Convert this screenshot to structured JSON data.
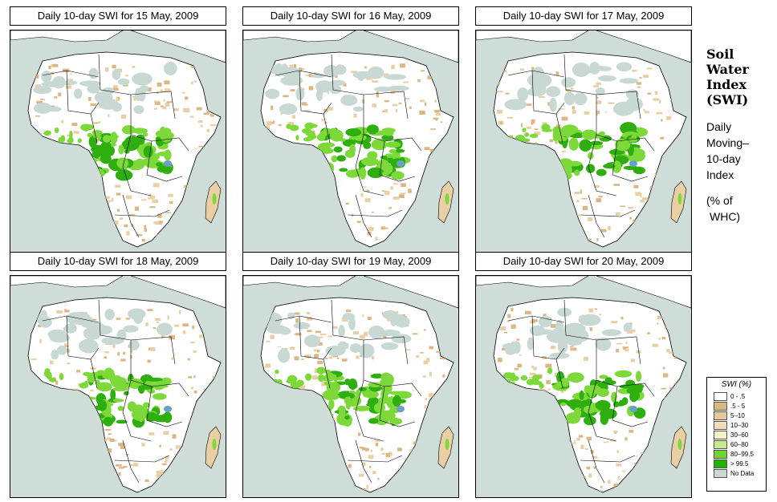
{
  "panels": [
    {
      "title": "Daily 10-day SWI for  15 May, 2009"
    },
    {
      "title": "Daily 10-day SWI for  16 May, 2009"
    },
    {
      "title": "Daily 10-day SWI for  17 May, 2009"
    },
    {
      "title": "Daily 10-day SWI for  18 May, 2009"
    },
    {
      "title": "Daily 10-day SWI for  19 May, 2009"
    },
    {
      "title": "Daily 10-day SWI for  20 May, 2009"
    }
  ],
  "side": {
    "title_lines": [
      "Soil",
      "Water",
      "Index",
      "(SWI)"
    ],
    "desc_lines": [
      "Daily",
      "Moving–",
      "10-day",
      "Index"
    ],
    "unit_lines": [
      "(% of",
      "WHC)"
    ]
  },
  "legend": {
    "title": "SWI (%)",
    "items": [
      {
        "label": "0 - .5",
        "color": "#ffffff"
      },
      {
        "label": ".5 - 5",
        "color": "#d9b983"
      },
      {
        "label": "5–10",
        "color": "#e6c99a"
      },
      {
        "label": "10–30",
        "color": "#f2ddb8"
      },
      {
        "label": "30–60",
        "color": "#f7f0c8"
      },
      {
        "label": "60–80",
        "color": "#c4ec8c"
      },
      {
        "label": "80–99.5",
        "color": "#6fd631"
      },
      {
        "label": "> 99.5",
        "color": "#1fb400"
      },
      {
        "label": "No Data",
        "color": "#c8d9d4"
      }
    ]
  },
  "colors": {
    "ocean": "#cfddd8",
    "land_dry": "#ffffff",
    "land_tan": "#e9cfa3",
    "wet_light": "#7dd83a",
    "wet_dark": "#2fae10",
    "no_data": "#c8d9d4",
    "border": "#000000"
  }
}
